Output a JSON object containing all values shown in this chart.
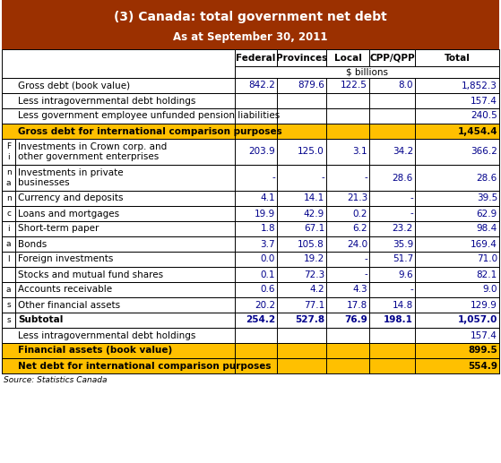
{
  "title": "(3) Canada: total government net debt",
  "subtitle": "As at September 30, 2011",
  "header_bg": "#9B3000",
  "header_text_color": "#FFFFFF",
  "col_headers": [
    "Federal",
    "Provinces",
    "Local",
    "CPP/QPP",
    "Total"
  ],
  "subheader": "$ billions",
  "gold_color": "#FFC000",
  "dark_gold": "#E6A800",
  "rows": [
    {
      "label": "Gross debt (book value)",
      "vals": [
        "842.2",
        "879.6",
        "122.5",
        "8.0",
        "1,852.3"
      ],
      "bold": false,
      "bg": "#FFFFFF",
      "side": false,
      "multiline": false
    },
    {
      "label": "Less intragovernmental debt holdings",
      "vals": [
        "",
        "",
        "",
        "",
        "157.4"
      ],
      "bold": false,
      "bg": "#FFFFFF",
      "side": false,
      "multiline": false
    },
    {
      "label": "Less government employee unfunded pension liabilities",
      "vals": [
        "",
        "",
        "",
        "",
        "240.5"
      ],
      "bold": false,
      "bg": "#FFFFFF",
      "side": false,
      "multiline": false
    },
    {
      "label": "Gross debt for international comparison purposes",
      "vals": [
        "",
        "",
        "",
        "",
        "1,454.4"
      ],
      "bold": true,
      "bg": "#FFC000",
      "side": false,
      "multiline": false
    },
    {
      "label": "Investments in Crown corp. and\nother government enterprises",
      "vals": [
        "203.9",
        "125.0",
        "3.1",
        "34.2",
        "366.2"
      ],
      "bold": false,
      "bg": "#FFFFFF",
      "side": true,
      "multiline": true,
      "side_char": "F\ni"
    },
    {
      "label": "Investments in private\nbusinesses",
      "vals": [
        "-",
        "-",
        "-",
        "28.6",
        "28.6"
      ],
      "bold": false,
      "bg": "#FFFFFF",
      "side": true,
      "multiline": true,
      "side_char": "n\na"
    },
    {
      "label": "Currency and deposits",
      "vals": [
        "4.1",
        "14.1",
        "21.3",
        "-",
        "39.5"
      ],
      "bold": false,
      "bg": "#FFFFFF",
      "side": true,
      "multiline": false,
      "side_char": "n"
    },
    {
      "label": "Loans and mortgages",
      "vals": [
        "19.9",
        "42.9",
        "0.2",
        "-",
        "62.9"
      ],
      "bold": false,
      "bg": "#FFFFFF",
      "side": true,
      "multiline": false,
      "side_char": "c"
    },
    {
      "label": "Short-term paper",
      "vals": [
        "1.8",
        "67.1",
        "6.2",
        "23.2",
        "98.4"
      ],
      "bold": false,
      "bg": "#FFFFFF",
      "side": true,
      "multiline": false,
      "side_char": "i"
    },
    {
      "label": "Bonds",
      "vals": [
        "3.7",
        "105.8",
        "24.0",
        "35.9",
        "169.4"
      ],
      "bold": false,
      "bg": "#FFFFFF",
      "side": true,
      "multiline": false,
      "side_char": "a"
    },
    {
      "label": "Foreign investments",
      "vals": [
        "0.0",
        "19.2",
        "-",
        "51.7",
        "71.0"
      ],
      "bold": false,
      "bg": "#FFFFFF",
      "side": true,
      "multiline": false,
      "side_char": "l"
    },
    {
      "label": "Stocks and mutual fund shares",
      "vals": [
        "0.1",
        "72.3",
        "-",
        "9.6",
        "82.1"
      ],
      "bold": false,
      "bg": "#FFFFFF",
      "side": true,
      "multiline": false,
      "side_char": ""
    },
    {
      "label": "Accounts receivable",
      "vals": [
        "0.6",
        "4.2",
        "4.3",
        "-",
        "9.0"
      ],
      "bold": false,
      "bg": "#FFFFFF",
      "side": true,
      "multiline": false,
      "side_char": "a"
    },
    {
      "label": "Other financial assets",
      "vals": [
        "20.2",
        "77.1",
        "17.8",
        "14.8",
        "129.9"
      ],
      "bold": false,
      "bg": "#FFFFFF",
      "side": true,
      "multiline": false,
      "side_char": "s"
    },
    {
      "label": "Subtotal",
      "vals": [
        "254.2",
        "527.8",
        "76.9",
        "198.1",
        "1,057.0"
      ],
      "bold": true,
      "bg": "#FFFFFF",
      "side": true,
      "multiline": false,
      "side_char": "s"
    },
    {
      "label": "Less intragovernmental debt holdings",
      "vals": [
        "",
        "",
        "",
        "",
        "157.4"
      ],
      "bold": false,
      "bg": "#FFFFFF",
      "side": false,
      "multiline": false
    },
    {
      "label": "Financial assets (book value)",
      "vals": [
        "",
        "",
        "",
        "",
        "899.5"
      ],
      "bold": true,
      "bg": "#FFC000",
      "side": false,
      "multiline": false
    },
    {
      "label": "Net debt for international comparison purposes",
      "vals": [
        "",
        "",
        "",
        "",
        "554.9"
      ],
      "bold": true,
      "bg": "#FFC000",
      "side": false,
      "multiline": false
    }
  ],
  "source": "Source: Statistics Canada",
  "val_color": "#00008B",
  "label_color": "#000000",
  "gold_label_color": "#000000"
}
